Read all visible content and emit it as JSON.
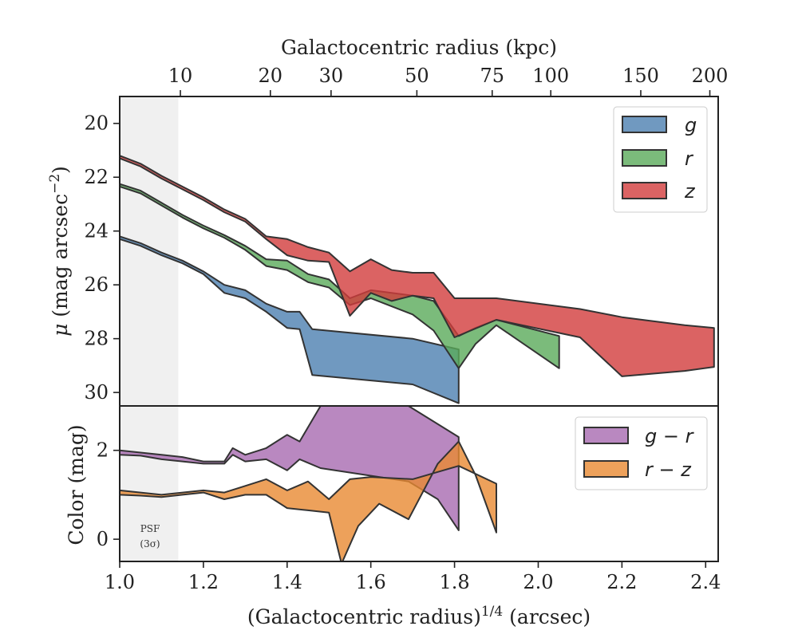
{
  "chart_data": [
    {
      "type": "area",
      "panel": "surface-brightness",
      "xlabel": "(Galactocentric radius)$^{1/4}$ (arcsec)",
      "ylabel_prefix": "μ",
      "ylabel_main": "(mag arcsec",
      "ylabel_sup": "−2",
      "ylabel_close": ")",
      "ylim": [
        30.5,
        19
      ],
      "y_inverted": true,
      "xlim": [
        1.0,
        2.43
      ],
      "yticks": [
        20,
        22,
        24,
        26,
        28,
        30
      ],
      "top_axis": {
        "label": "Galactocentric radius (kpc)",
        "ticks": [
          {
            "label": "10",
            "x": 1.145
          },
          {
            "label": "20",
            "x": 1.36
          },
          {
            "label": "30",
            "x": 1.505
          },
          {
            "label": "50",
            "x": 1.71
          },
          {
            "label": "75",
            "x": 1.89
          },
          {
            "label": "100",
            "x": 2.03
          },
          {
            "label": "150",
            "x": 2.245
          },
          {
            "label": "200",
            "x": 2.41
          }
        ]
      },
      "legend": {
        "position": "upper right",
        "entries": [
          "g",
          "r",
          "z"
        ]
      },
      "psf_region": {
        "x": [
          1.0,
          1.14
        ]
      },
      "series": [
        {
          "name": "g",
          "color": "#4c7fb0",
          "upper": [
            [
              1.0,
              24.2
            ],
            [
              1.05,
              24.45
            ],
            [
              1.1,
              24.8
            ],
            [
              1.15,
              25.1
            ],
            [
              1.2,
              25.5
            ],
            [
              1.25,
              26.0
            ],
            [
              1.3,
              26.2
            ],
            [
              1.35,
              26.7
            ],
            [
              1.4,
              27.0
            ],
            [
              1.43,
              27.0
            ],
            [
              1.46,
              27.65
            ],
            [
              1.7,
              28.0
            ],
            [
              1.81,
              28.4
            ]
          ],
          "lower": [
            [
              1.0,
              24.3
            ],
            [
              1.05,
              24.55
            ],
            [
              1.1,
              24.9
            ],
            [
              1.15,
              25.2
            ],
            [
              1.2,
              25.6
            ],
            [
              1.25,
              26.3
            ],
            [
              1.3,
              26.5
            ],
            [
              1.35,
              27.0
            ],
            [
              1.4,
              27.6
            ],
            [
              1.43,
              27.65
            ],
            [
              1.46,
              29.35
            ],
            [
              1.7,
              29.7
            ],
            [
              1.81,
              30.4
            ]
          ]
        },
        {
          "name": "r",
          "color": "#5aaa5a",
          "upper": [
            [
              1.0,
              22.25
            ],
            [
              1.05,
              22.5
            ],
            [
              1.1,
              22.95
            ],
            [
              1.15,
              23.4
            ],
            [
              1.2,
              23.8
            ],
            [
              1.25,
              24.15
            ],
            [
              1.3,
              24.55
            ],
            [
              1.35,
              25.05
            ],
            [
              1.4,
              25.1
            ],
            [
              1.45,
              25.6
            ],
            [
              1.5,
              25.8
            ],
            [
              1.55,
              26.5
            ],
            [
              1.6,
              26.2
            ],
            [
              1.7,
              26.4
            ],
            [
              1.75,
              26.6
            ],
            [
              1.81,
              27.9
            ],
            [
              1.85,
              27.6
            ],
            [
              1.9,
              27.3
            ],
            [
              2.05,
              27.9
            ]
          ],
          "lower": [
            [
              1.0,
              22.35
            ],
            [
              1.05,
              22.6
            ],
            [
              1.1,
              23.05
            ],
            [
              1.15,
              23.5
            ],
            [
              1.2,
              23.9
            ],
            [
              1.25,
              24.25
            ],
            [
              1.3,
              24.7
            ],
            [
              1.35,
              25.3
            ],
            [
              1.4,
              25.45
            ],
            [
              1.45,
              25.9
            ],
            [
              1.5,
              26.1
            ],
            [
              1.55,
              26.75
            ],
            [
              1.6,
              26.5
            ],
            [
              1.7,
              27.1
            ],
            [
              1.75,
              27.7
            ],
            [
              1.81,
              29.1
            ],
            [
              1.85,
              28.2
            ],
            [
              1.9,
              27.5
            ],
            [
              2.05,
              29.1
            ]
          ]
        },
        {
          "name": "z",
          "color": "#d23c3c",
          "upper": [
            [
              1.0,
              21.2
            ],
            [
              1.05,
              21.5
            ],
            [
              1.1,
              21.95
            ],
            [
              1.15,
              22.35
            ],
            [
              1.2,
              22.75
            ],
            [
              1.25,
              23.2
            ],
            [
              1.3,
              23.55
            ],
            [
              1.35,
              24.2
            ],
            [
              1.4,
              24.3
            ],
            [
              1.45,
              24.6
            ],
            [
              1.5,
              24.8
            ],
            [
              1.55,
              25.5
            ],
            [
              1.6,
              25.05
            ],
            [
              1.65,
              25.45
            ],
            [
              1.7,
              25.55
            ],
            [
              1.75,
              25.55
            ],
            [
              1.8,
              26.5
            ],
            [
              1.9,
              26.5
            ],
            [
              2.1,
              26.9
            ],
            [
              2.2,
              27.2
            ],
            [
              2.35,
              27.5
            ],
            [
              2.42,
              27.6
            ]
          ],
          "lower": [
            [
              1.0,
              21.3
            ],
            [
              1.05,
              21.6
            ],
            [
              1.1,
              22.05
            ],
            [
              1.15,
              22.45
            ],
            [
              1.2,
              22.85
            ],
            [
              1.25,
              23.3
            ],
            [
              1.3,
              23.65
            ],
            [
              1.35,
              24.3
            ],
            [
              1.4,
              24.9
            ],
            [
              1.45,
              25.1
            ],
            [
              1.5,
              25.15
            ],
            [
              1.55,
              27.15
            ],
            [
              1.6,
              26.3
            ],
            [
              1.65,
              26.6
            ],
            [
              1.7,
              26.4
            ],
            [
              1.75,
              26.5
            ],
            [
              1.8,
              27.95
            ],
            [
              1.9,
              27.3
            ],
            [
              2.1,
              27.95
            ],
            [
              2.2,
              29.4
            ],
            [
              2.35,
              29.2
            ],
            [
              2.42,
              29.05
            ]
          ]
        }
      ]
    },
    {
      "type": "area",
      "panel": "color",
      "ylabel": "Color (mag)",
      "ylim": [
        -0.5,
        3.0
      ],
      "yticks": [
        0,
        2
      ],
      "psf_label_line1": "PSF",
      "psf_label_line2": "(3σ)",
      "legend": {
        "position": "upper right",
        "entries": [
          "g − r",
          "r − z"
        ]
      },
      "series": [
        {
          "name": "g − r",
          "color": "#a86ab0",
          "upper": [
            [
              1.0,
              2.0
            ],
            [
              1.05,
              1.95
            ],
            [
              1.1,
              1.9
            ],
            [
              1.15,
              1.85
            ],
            [
              1.2,
              1.75
            ],
            [
              1.25,
              1.75
            ],
            [
              1.27,
              2.05
            ],
            [
              1.3,
              1.9
            ],
            [
              1.35,
              2.05
            ],
            [
              1.4,
              2.35
            ],
            [
              1.43,
              2.2
            ],
            [
              1.48,
              3.0
            ],
            [
              1.69,
              3.0
            ],
            [
              1.81,
              2.3
            ]
          ],
          "lower": [
            [
              1.0,
              1.9
            ],
            [
              1.05,
              1.88
            ],
            [
              1.1,
              1.8
            ],
            [
              1.15,
              1.75
            ],
            [
              1.2,
              1.7
            ],
            [
              1.25,
              1.7
            ],
            [
              1.27,
              1.9
            ],
            [
              1.3,
              1.75
            ],
            [
              1.35,
              1.8
            ],
            [
              1.4,
              1.55
            ],
            [
              1.43,
              1.8
            ],
            [
              1.48,
              1.6
            ],
            [
              1.69,
              1.3
            ],
            [
              1.76,
              0.9
            ],
            [
              1.81,
              0.2
            ]
          ]
        },
        {
          "name": "r − z",
          "color": "#e88a32",
          "upper": [
            [
              1.0,
              1.1
            ],
            [
              1.05,
              1.05
            ],
            [
              1.1,
              1.0
            ],
            [
              1.15,
              1.05
            ],
            [
              1.2,
              1.1
            ],
            [
              1.25,
              1.05
            ],
            [
              1.3,
              1.2
            ],
            [
              1.35,
              1.35
            ],
            [
              1.4,
              1.1
            ],
            [
              1.45,
              1.3
            ],
            [
              1.5,
              0.9
            ],
            [
              1.55,
              1.35
            ],
            [
              1.6,
              1.4
            ],
            [
              1.7,
              1.35
            ],
            [
              1.81,
              1.65
            ],
            [
              1.9,
              1.25
            ]
          ],
          "lower": [
            [
              1.0,
              1.0
            ],
            [
              1.05,
              0.98
            ],
            [
              1.1,
              0.95
            ],
            [
              1.15,
              1.0
            ],
            [
              1.2,
              1.05
            ],
            [
              1.25,
              0.9
            ],
            [
              1.3,
              1.0
            ],
            [
              1.35,
              1.0
            ],
            [
              1.4,
              0.7
            ],
            [
              1.45,
              0.65
            ],
            [
              1.5,
              0.6
            ],
            [
              1.53,
              -0.55
            ],
            [
              1.57,
              0.3
            ],
            [
              1.62,
              0.8
            ],
            [
              1.69,
              0.45
            ],
            [
              1.76,
              1.7
            ],
            [
              1.81,
              2.2
            ],
            [
              1.85,
              1.45
            ],
            [
              1.9,
              0.15
            ]
          ]
        }
      ]
    }
  ]
}
